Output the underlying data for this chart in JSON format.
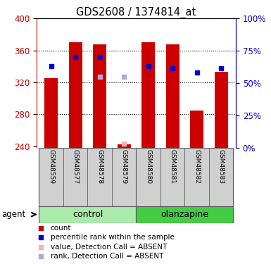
{
  "title": "GDS2608 / 1374814_at",
  "samples": [
    "GSM48559",
    "GSM48577",
    "GSM48578",
    "GSM48579",
    "GSM48580",
    "GSM48581",
    "GSM48582",
    "GSM48583"
  ],
  "bar_values": [
    325,
    370,
    368,
    242,
    370,
    368,
    285,
    333
  ],
  "bar_bottom": 238,
  "blue_dots": [
    340,
    352,
    352,
    null,
    340,
    338,
    332,
    338
  ],
  "absent_value": [
    null,
    null,
    null,
    243,
    null,
    null,
    null,
    null
  ],
  "absent_rank": [
    null,
    null,
    327,
    327,
    null,
    null,
    null,
    null
  ],
  "ylim": [
    238,
    400
  ],
  "yticks": [
    240,
    280,
    320,
    360,
    400
  ],
  "right_yticks": [
    0,
    25,
    50,
    75,
    100
  ],
  "right_ylim": [
    0,
    100
  ],
  "bar_color": "#cc0000",
  "blue_dot_color": "#0000cc",
  "absent_value_color": "#ffb0b0",
  "absent_rank_color": "#aaaadd",
  "control_color": "#aaeaaa",
  "olanzapine_color": "#44cc44",
  "sample_bg_color": "#d0d0d0",
  "bar_width": 0.55,
  "axis_left_color": "#cc0000",
  "axis_right_color": "#0000cc",
  "legend_items": [
    {
      "color": "#cc0000",
      "label": "count"
    },
    {
      "color": "#0000cc",
      "label": "percentile rank within the sample"
    },
    {
      "color": "#ffb0b0",
      "label": "value, Detection Call = ABSENT"
    },
    {
      "color": "#aaaadd",
      "label": "rank, Detection Call = ABSENT"
    }
  ]
}
